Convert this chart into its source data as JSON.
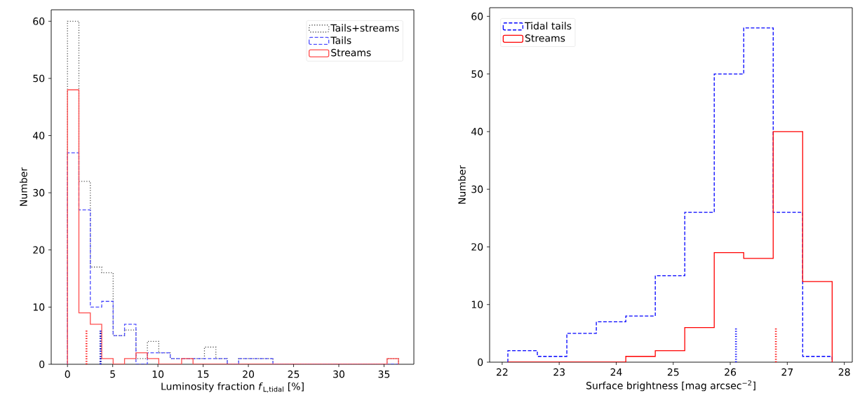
{
  "chart_data": [
    {
      "type": "histogram",
      "xlabel": "Luminosity fraction *f*$_{L,tidal}$ [%]",
      "ylabel": "Number",
      "bins": [
        0,
        1.262,
        2.524,
        3.786,
        5.048,
        6.31,
        7.572,
        8.834,
        10.096,
        11.358,
        12.62,
        13.882,
        15.144,
        16.406,
        17.668,
        18.93,
        20.192,
        21.454,
        22.716,
        23.978,
        25.24,
        26.502,
        27.764,
        29.026,
        30.288,
        31.55,
        32.812,
        34.074,
        35.336,
        36.598
      ],
      "series": [
        {
          "name": "Tails+streams",
          "color": "#4d4d4d",
          "line_style": "dotted",
          "values": [
            60,
            32,
            17,
            16,
            5,
            6,
            1,
            4,
            2,
            1,
            1,
            1,
            3,
            1,
            0,
            1,
            1,
            1,
            0,
            0,
            0,
            0,
            0,
            0,
            0,
            0,
            0,
            0,
            1
          ]
        },
        {
          "name": "Tails",
          "color": "#4d4dff",
          "line_style": "dashed",
          "values": [
            37,
            27,
            10,
            11,
            5,
            7,
            0,
            2,
            2,
            1,
            1,
            1,
            1,
            1,
            0,
            1,
            1,
            1,
            0,
            0,
            0,
            0,
            0,
            0,
            0,
            0,
            0,
            0,
            0
          ]
        },
        {
          "name": "Streams",
          "color": "#ff4d4d",
          "line_style": "solid",
          "values": [
            48,
            9,
            7,
            1,
            0,
            1,
            2,
            1,
            0,
            0,
            1,
            0,
            0,
            0,
            0,
            0,
            0,
            0,
            0,
            0,
            0,
            0,
            0,
            0,
            0,
            0,
            0,
            0,
            1
          ]
        }
      ],
      "xlim": [
        -1.8,
        38.3
      ],
      "ylim": [
        0,
        62
      ],
      "xticks": [
        0,
        5,
        10,
        15,
        20,
        25,
        30,
        35
      ],
      "yticks": [
        0,
        10,
        20,
        30,
        40,
        50,
        60
      ],
      "ref_lines": [
        {
          "axis": "x",
          "value": 2.1,
          "color": "#ff0000",
          "line_style": "dotted"
        },
        {
          "axis": "x",
          "value": 3.65,
          "color": "#000000",
          "line_style": "dotted"
        },
        {
          "axis": "x",
          "value": 3.65,
          "color": "#0000ff",
          "line_style": "dotted"
        }
      ],
      "legend": "top right",
      "grid": false
    },
    {
      "type": "histogram",
      "xlabel": "Surface brightness [mag arcsec$^{−2}$]",
      "ylabel": "Number",
      "bins": [
        22.1,
        22.617,
        23.134,
        23.651,
        24.168,
        24.685,
        25.202,
        25.719,
        26.236,
        26.753,
        27.27,
        27.787
      ],
      "series": [
        {
          "name": "Tidal tails",
          "color": "#0000ff",
          "line_style": "dashed",
          "values": [
            2,
            1,
            5,
            7,
            8,
            15,
            26,
            50,
            58,
            26,
            1
          ]
        },
        {
          "name": "Streams",
          "color": "#ff0000",
          "line_style": "solid",
          "values": [
            0,
            0,
            0,
            0,
            1,
            2,
            6,
            19,
            18,
            40,
            14
          ]
        }
      ],
      "xlim": [
        21.78,
        28.14
      ],
      "ylim": [
        0,
        61.5
      ],
      "xticks": [
        22,
        23,
        24,
        25,
        26,
        27,
        28
      ],
      "yticks": [
        0,
        10,
        20,
        30,
        40,
        50,
        60
      ],
      "ref_lines": [
        {
          "axis": "x",
          "value": 26.1,
          "color": "#0000ff",
          "line_style": "dotted"
        },
        {
          "axis": "x",
          "value": 26.8,
          "color": "#ff0000",
          "line_style": "dotted"
        }
      ],
      "legend": "top left",
      "grid": false
    }
  ]
}
